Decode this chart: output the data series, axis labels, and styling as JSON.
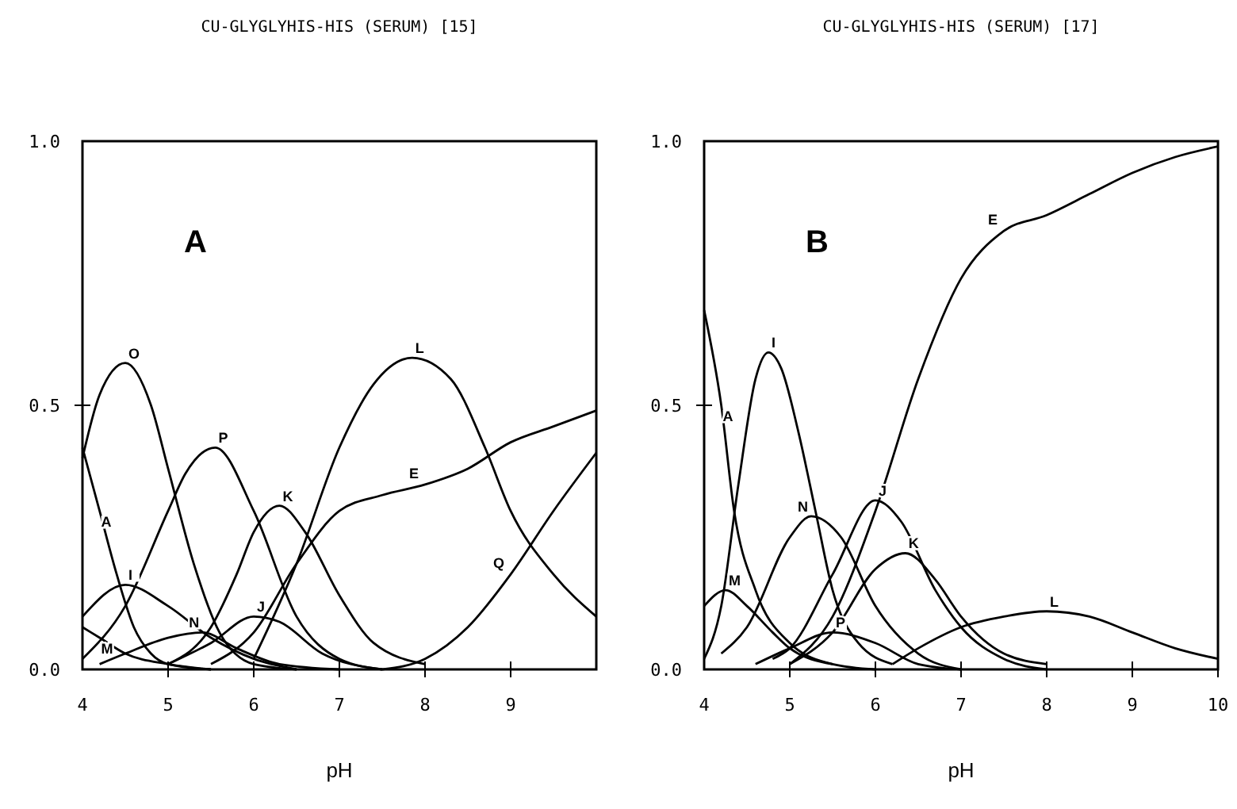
{
  "chart_data": [
    {
      "type": "line",
      "title": "CU-GLYGLYHIS-HIS (SERUM) [15]",
      "xlabel": "pH",
      "annotations": [
        "A"
      ],
      "xlim": [
        4,
        10
      ],
      "ylim": [
        0,
        1
      ],
      "xticks": [
        4,
        5,
        6,
        7,
        8,
        9
      ],
      "yticks": [
        {
          "value": 0,
          "label": "0.0"
        },
        {
          "value": 0.5,
          "label": "0.5"
        },
        {
          "value": 1,
          "label": "1.0"
        }
      ],
      "grid": false,
      "legend": false,
      "marker": "none",
      "line_style": "solid",
      "series": [
        {
          "name": "O",
          "color": "#000000",
          "x": [
            4,
            4.2,
            4.5,
            4.8,
            5,
            5.3,
            5.6,
            6,
            6.5
          ],
          "values": [
            0.4,
            0.52,
            0.58,
            0.5,
            0.38,
            0.2,
            0.07,
            0.01,
            0
          ]
        },
        {
          "name": "P",
          "color": "#000000",
          "x": [
            4,
            4.5,
            5,
            5.2,
            5.55,
            6,
            6.5,
            7,
            7.5
          ],
          "values": [
            0.02,
            0.12,
            0.3,
            0.37,
            0.42,
            0.3,
            0.1,
            0.02,
            0
          ]
        },
        {
          "name": "K",
          "color": "#000000",
          "x": [
            5,
            5.5,
            5.8,
            6,
            6.3,
            6.6,
            7,
            7.4,
            8
          ],
          "values": [
            0.01,
            0.08,
            0.18,
            0.26,
            0.31,
            0.26,
            0.14,
            0.05,
            0.01
          ]
        },
        {
          "name": "L",
          "color": "#000000",
          "x": [
            6,
            6.5,
            7,
            7.4,
            7.85,
            8.3,
            8.7,
            9,
            9.5,
            10
          ],
          "values": [
            0.02,
            0.2,
            0.42,
            0.54,
            0.59,
            0.55,
            0.42,
            0.3,
            0.18,
            0.1
          ]
        },
        {
          "name": "Q",
          "color": "#000000",
          "x": [
            7.5,
            8,
            8.5,
            9,
            9.5,
            10
          ],
          "values": [
            0,
            0.02,
            0.08,
            0.18,
            0.3,
            0.41
          ]
        },
        {
          "name": "A",
          "color": "#000000",
          "x": [
            4,
            4.2,
            4.4,
            4.6,
            4.8,
            5,
            5.5
          ],
          "values": [
            0.42,
            0.3,
            0.18,
            0.08,
            0.03,
            0.01,
            0
          ]
        },
        {
          "name": "I",
          "color": "#000000",
          "x": [
            4,
            4.5,
            5,
            5.5,
            6,
            6.5
          ],
          "values": [
            0.1,
            0.16,
            0.12,
            0.06,
            0.02,
            0
          ]
        },
        {
          "name": "M",
          "color": "#000000",
          "x": [
            4,
            4.2,
            4.5,
            5,
            5.5
          ],
          "values": [
            0.08,
            0.06,
            0.03,
            0.01,
            0
          ]
        },
        {
          "name": "N",
          "color": "#000000",
          "x": [
            4.2,
            4.5,
            5,
            5.4,
            5.8,
            6.3,
            7
          ],
          "values": [
            0.01,
            0.03,
            0.06,
            0.07,
            0.04,
            0.01,
            0
          ]
        },
        {
          "name": "J",
          "color": "#000000",
          "x": [
            5,
            5.5,
            6,
            6.3,
            6.8,
            7.5
          ],
          "values": [
            0.01,
            0.05,
            0.1,
            0.09,
            0.03,
            0
          ]
        },
        {
          "name": "E",
          "color": "#000000",
          "x": [
            5.5,
            6,
            6.5,
            7,
            7.5,
            8,
            8.5,
            9,
            9.5,
            10
          ],
          "values": [
            0.01,
            0.07,
            0.2,
            0.3,
            0.33,
            0.35,
            0.38,
            0.43,
            0.46,
            0.49
          ]
        }
      ]
    },
    {
      "type": "line",
      "title": "CU-GLYGLYHIS-HIS (SERUM) [17]",
      "xlabel": "pH",
      "annotations": [
        "B"
      ],
      "xlim": [
        4,
        10
      ],
      "ylim": [
        0,
        1
      ],
      "xticks": [
        4,
        5,
        6,
        7,
        8,
        9,
        10
      ],
      "yticks": [
        {
          "value": 0,
          "label": "0.0"
        },
        {
          "value": 0.5,
          "label": "0.5"
        },
        {
          "value": 1,
          "label": "1.0"
        }
      ],
      "grid": false,
      "legend": false,
      "marker": "none",
      "line_style": "solid",
      "series": [
        {
          "name": "E",
          "color": "#000000",
          "x": [
            5,
            5.5,
            6,
            6.5,
            7,
            7.5,
            8,
            8.5,
            9,
            9.5,
            10
          ],
          "values": [
            0.01,
            0.1,
            0.3,
            0.55,
            0.74,
            0.83,
            0.86,
            0.9,
            0.94,
            0.97,
            0.99
          ]
        },
        {
          "name": "A",
          "color": "#000000",
          "x": [
            4,
            4.2,
            4.35,
            4.6,
            5,
            5.5,
            6
          ],
          "values": [
            0.68,
            0.5,
            0.3,
            0.15,
            0.05,
            0.01,
            0
          ]
        },
        {
          "name": "I",
          "color": "#000000",
          "x": [
            4,
            4.2,
            4.4,
            4.6,
            4.75,
            4.9,
            5.1,
            5.3,
            5.5,
            5.8,
            6.2
          ],
          "values": [
            0.02,
            0.12,
            0.35,
            0.55,
            0.6,
            0.57,
            0.45,
            0.3,
            0.15,
            0.05,
            0.01
          ]
        },
        {
          "name": "M",
          "color": "#000000",
          "x": [
            4,
            4.25,
            4.5,
            4.8,
            5,
            5.5
          ],
          "values": [
            0.12,
            0.15,
            0.12,
            0.07,
            0.04,
            0.01
          ]
        },
        {
          "name": "N",
          "color": "#000000",
          "x": [
            4.2,
            4.5,
            5,
            5.25,
            5.6,
            6,
            6.5,
            7
          ],
          "values": [
            0.03,
            0.08,
            0.25,
            0.29,
            0.25,
            0.12,
            0.03,
            0
          ]
        },
        {
          "name": "J",
          "color": "#000000",
          "x": [
            4.8,
            5,
            5.5,
            6,
            6.3,
            6.7,
            7,
            7.5,
            8
          ],
          "values": [
            0.02,
            0.04,
            0.18,
            0.32,
            0.28,
            0.15,
            0.08,
            0.02,
            0
          ]
        },
        {
          "name": "K",
          "color": "#000000",
          "x": [
            5,
            5.5,
            6,
            6.35,
            6.7,
            7,
            7.5,
            8
          ],
          "values": [
            0.01,
            0.07,
            0.19,
            0.22,
            0.17,
            0.1,
            0.03,
            0.01
          ]
        },
        {
          "name": "P",
          "color": "#000000",
          "x": [
            4.6,
            5,
            5.5,
            6,
            6.5,
            7
          ],
          "values": [
            0.01,
            0.04,
            0.07,
            0.05,
            0.01,
            0
          ]
        },
        {
          "name": "L",
          "color": "#000000",
          "x": [
            6.2,
            6.5,
            7,
            7.5,
            8,
            8.5,
            9,
            9.5,
            10
          ],
          "values": [
            0.01,
            0.04,
            0.08,
            0.1,
            0.11,
            0.1,
            0.07,
            0.04,
            0.02
          ]
        }
      ]
    }
  ]
}
